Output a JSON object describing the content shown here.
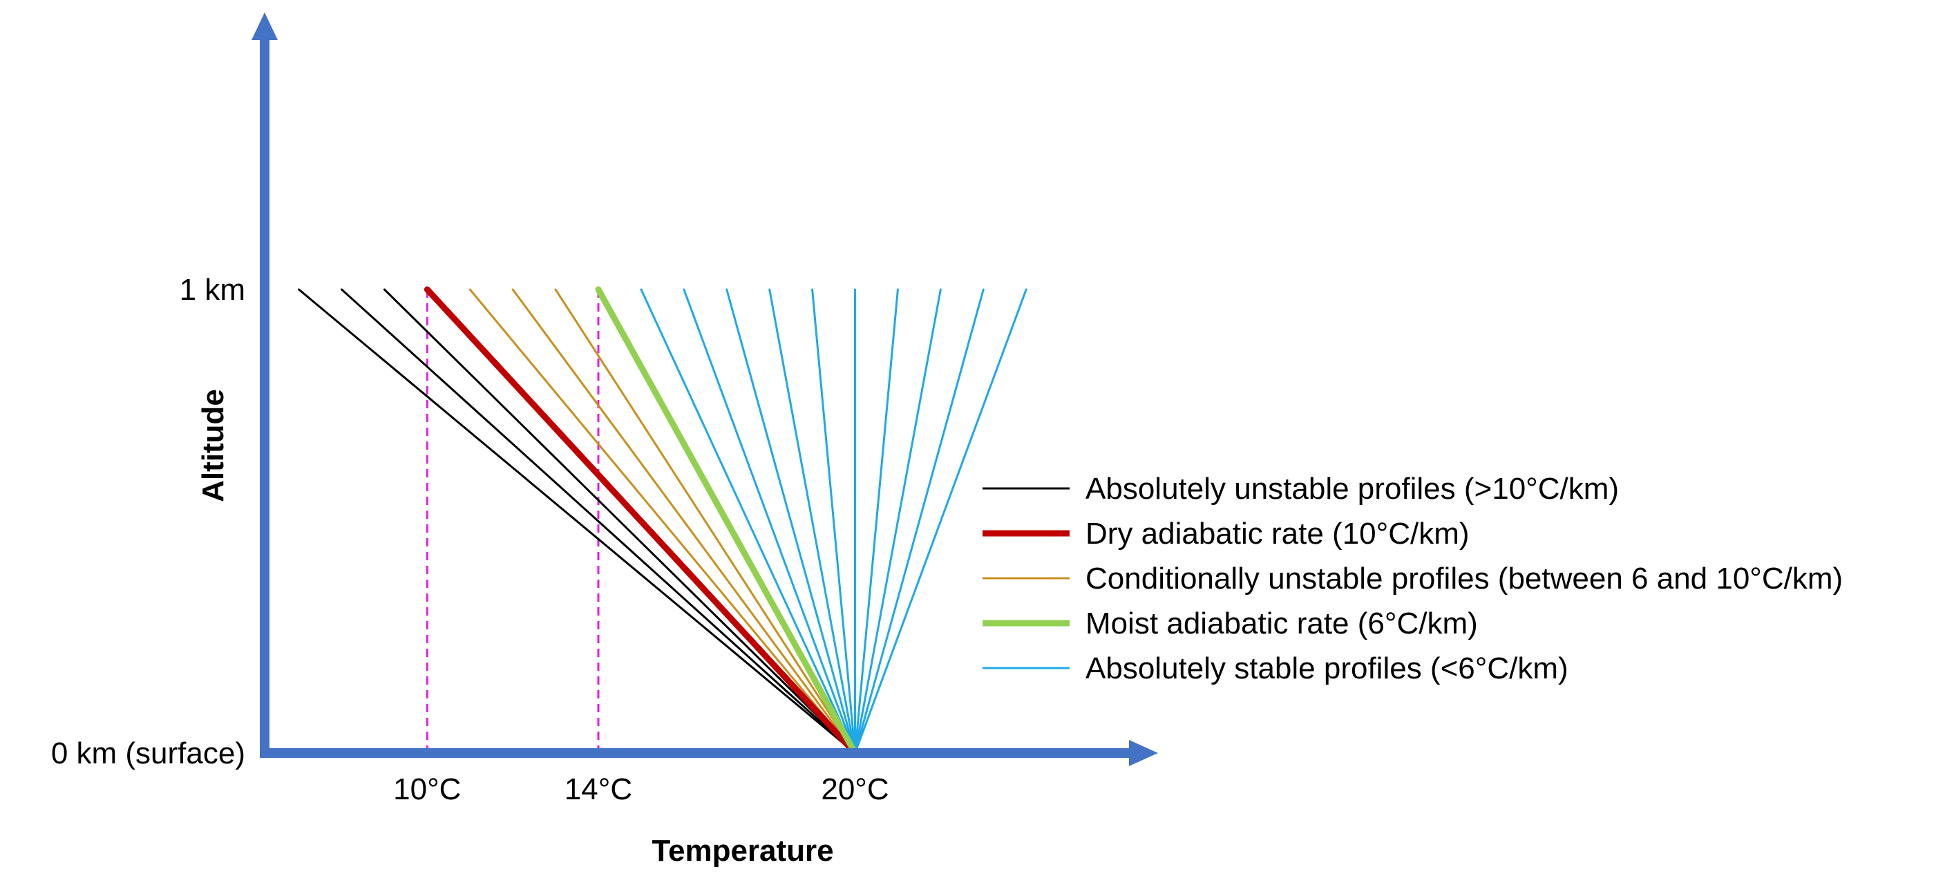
{
  "colors": {
    "axis": "#4472C4",
    "guide": "#E020E0",
    "unstable": "#000000",
    "dry_adiabatic": "#C00000",
    "conditional": "#C8901E",
    "moist_adiabatic": "#92D050",
    "stable": "#1FA9E6"
  },
  "chart_data": {
    "type": "line",
    "xlabel": "Temperature",
    "ylabel": "Altitude",
    "x_ticks": [
      {
        "value": 10,
        "label": "10°C"
      },
      {
        "value": 14,
        "label": "14°C"
      },
      {
        "value": 20,
        "label": "20°C"
      }
    ],
    "y_ticks": [
      {
        "value": 0,
        "label": "0 km (surface)"
      },
      {
        "value": 1,
        "label": "1 km"
      }
    ],
    "xlim": [
      6.2,
      26.5
    ],
    "ylim": [
      0,
      1.55
    ],
    "guide_lines_x": [
      10,
      14
    ],
    "surface_temperature": 20,
    "legend": [
      {
        "key": "unstable",
        "label": "Absolutely unstable profiles (>10°C/km)",
        "color": "#000000",
        "width": "thin"
      },
      {
        "key": "dry",
        "label": "Dry adiabatic rate (10°C/km)",
        "color": "#C00000",
        "width": "thick"
      },
      {
        "key": "conditional",
        "label": "Conditionally unstable profiles (between 6 and 10°C/km)",
        "color": "#C8901E",
        "width": "thin"
      },
      {
        "key": "moist",
        "label": "Moist adiabatic rate (6°C/km)",
        "color": "#92D050",
        "width": "thick"
      },
      {
        "key": "stable",
        "label": "Absolutely stable profiles (<6°C/km)",
        "color": "#1FA9E6",
        "width": "thin"
      }
    ],
    "series": [
      {
        "group": "unstable",
        "x": [
          20,
          7
        ],
        "y": [
          0,
          1
        ]
      },
      {
        "group": "unstable",
        "x": [
          20,
          8
        ],
        "y": [
          0,
          1
        ]
      },
      {
        "group": "unstable",
        "x": [
          20,
          9
        ],
        "y": [
          0,
          1
        ]
      },
      {
        "group": "dry",
        "x": [
          20,
          10
        ],
        "y": [
          0,
          1
        ]
      },
      {
        "group": "conditional",
        "x": [
          20,
          11
        ],
        "y": [
          0,
          1
        ]
      },
      {
        "group": "conditional",
        "x": [
          20,
          12
        ],
        "y": [
          0,
          1
        ]
      },
      {
        "group": "conditional",
        "x": [
          20,
          13
        ],
        "y": [
          0,
          1
        ]
      },
      {
        "group": "moist",
        "x": [
          20,
          14
        ],
        "y": [
          0,
          1
        ]
      },
      {
        "group": "stable",
        "x": [
          20,
          15
        ],
        "y": [
          0,
          1
        ]
      },
      {
        "group": "stable",
        "x": [
          20,
          16
        ],
        "y": [
          0,
          1
        ]
      },
      {
        "group": "stable",
        "x": [
          20,
          17
        ],
        "y": [
          0,
          1
        ]
      },
      {
        "group": "stable",
        "x": [
          20,
          18
        ],
        "y": [
          0,
          1
        ]
      },
      {
        "group": "stable",
        "x": [
          20,
          19
        ],
        "y": [
          0,
          1
        ]
      },
      {
        "group": "stable",
        "x": [
          20,
          20
        ],
        "y": [
          0,
          1
        ]
      },
      {
        "group": "stable",
        "x": [
          20,
          21
        ],
        "y": [
          0,
          1
        ]
      },
      {
        "group": "stable",
        "x": [
          20,
          22
        ],
        "y": [
          0,
          1
        ]
      },
      {
        "group": "stable",
        "x": [
          20,
          23
        ],
        "y": [
          0,
          1
        ]
      },
      {
        "group": "stable",
        "x": [
          20,
          24
        ],
        "y": [
          0,
          1
        ]
      }
    ]
  }
}
